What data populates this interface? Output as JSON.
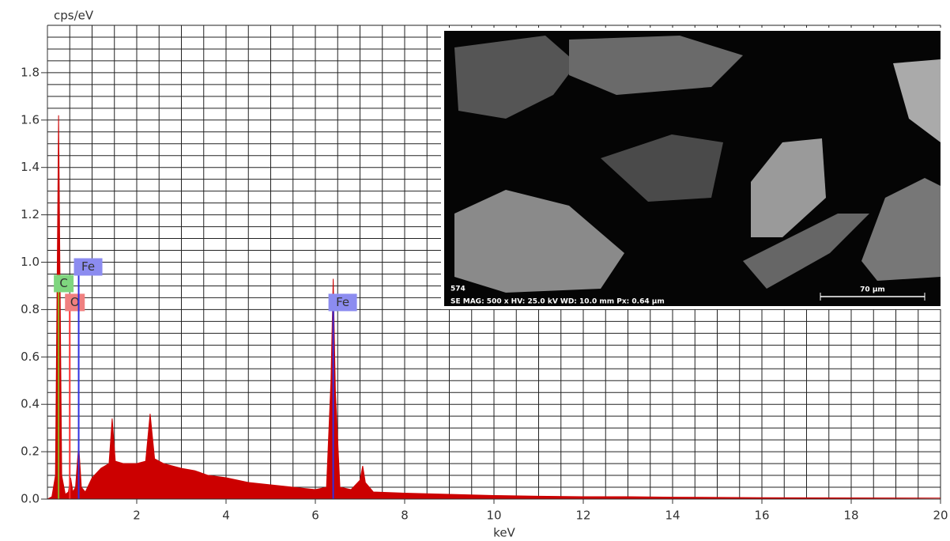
{
  "chart_data": {
    "type": "area",
    "y_label": "cps/eV",
    "x_label": "keV",
    "x": [
      0,
      0.1,
      0.18,
      0.25,
      0.32,
      0.4,
      0.47,
      0.52,
      0.57,
      0.63,
      0.7,
      0.76,
      0.85,
      1.0,
      1.2,
      1.38,
      1.45,
      1.52,
      1.7,
      2.0,
      2.2,
      2.3,
      2.4,
      2.6,
      3.0,
      3.3,
      3.6,
      4.0,
      4.5,
      5.0,
      5.5,
      6.0,
      6.25,
      6.35,
      6.4,
      6.45,
      6.55,
      6.8,
      7.0,
      7.06,
      7.12,
      7.3,
      8.0,
      9.0,
      10.0,
      11.0,
      12.0,
      13.0,
      14.0,
      16.0,
      18.0,
      20.0
    ],
    "values": [
      0,
      0.01,
      0.1,
      1.62,
      0.1,
      0.02,
      0.03,
      0.09,
      0.03,
      0.05,
      0.23,
      0.05,
      0.03,
      0.09,
      0.13,
      0.15,
      0.34,
      0.16,
      0.15,
      0.15,
      0.16,
      0.36,
      0.17,
      0.15,
      0.13,
      0.12,
      0.1,
      0.09,
      0.07,
      0.06,
      0.05,
      0.04,
      0.05,
      0.5,
      0.93,
      0.45,
      0.05,
      0.04,
      0.08,
      0.14,
      0.07,
      0.03,
      0.025,
      0.02,
      0.015,
      0.012,
      0.01,
      0.01,
      0.008,
      0.006,
      0.005,
      0.004
    ],
    "color": "#cc0000",
    "xlim": [
      0,
      20
    ],
    "ylim": [
      0,
      2.0
    ],
    "xticks": [
      2,
      4,
      6,
      8,
      10,
      12,
      14,
      16,
      18,
      20
    ],
    "yticks": [
      {
        "value": 0,
        "label": "0.0"
      },
      0.2,
      0.4,
      0.6,
      0.8,
      {
        "value": 1,
        "label": "1.0"
      },
      1.2,
      1.4,
      1.6,
      1.8
    ],
    "grid": true,
    "xgrid_step": 0.5,
    "ygrid_step": 0.05,
    "element_markers": [
      {
        "label": "C",
        "energy": 0.25,
        "level": 0.91,
        "color": "#7fd67f"
      },
      {
        "label": "O",
        "energy": 0.5,
        "level": 0.83,
        "color": "#f08080"
      },
      {
        "label": "Fe",
        "energy": 0.7,
        "level": 0.98,
        "color": "#8c8cf0"
      },
      {
        "label": "Fe",
        "energy": 6.4,
        "level": 0.83,
        "color": "#8c8cf0"
      }
    ],
    "inset": {
      "id": "574",
      "caption": "SE MAG: 500 x HV: 25.0 kV WD: 10.0 mm Px: 0.64 µm",
      "scale_bar": "70 µm"
    }
  }
}
